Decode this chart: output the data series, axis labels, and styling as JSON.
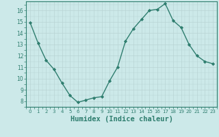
{
  "x": [
    0,
    1,
    2,
    3,
    4,
    5,
    6,
    7,
    8,
    9,
    10,
    11,
    12,
    13,
    14,
    15,
    16,
    17,
    18,
    19,
    20,
    21,
    22,
    23
  ],
  "y": [
    14.9,
    13.1,
    11.6,
    10.8,
    9.6,
    8.5,
    7.9,
    8.1,
    8.3,
    8.4,
    9.8,
    11.0,
    13.3,
    14.4,
    15.2,
    16.0,
    16.1,
    16.6,
    15.1,
    14.5,
    13.0,
    12.0,
    11.5,
    11.3
  ],
  "line_color": "#2e7d6e",
  "marker": "D",
  "markersize": 2.2,
  "linewidth": 1.0,
  "bg_color": "#cce9e9",
  "grid_color": "#b8d4d4",
  "xlabel": "Humidex (Indice chaleur)",
  "xlabel_fontsize": 7.5,
  "xtick_labels": [
    "0",
    "1",
    "2",
    "3",
    "4",
    "5",
    "6",
    "7",
    "8",
    "9",
    "10",
    "11",
    "12",
    "13",
    "14",
    "15",
    "16",
    "17",
    "18",
    "19",
    "20",
    "21",
    "22",
    "23"
  ],
  "ytick_labels": [
    "8",
    "9",
    "10",
    "11",
    "12",
    "13",
    "14",
    "15",
    "16"
  ],
  "ylim": [
    7.5,
    16.8
  ],
  "xlim": [
    -0.5,
    23.5
  ],
  "yticks": [
    8,
    9,
    10,
    11,
    12,
    13,
    14,
    15,
    16
  ]
}
